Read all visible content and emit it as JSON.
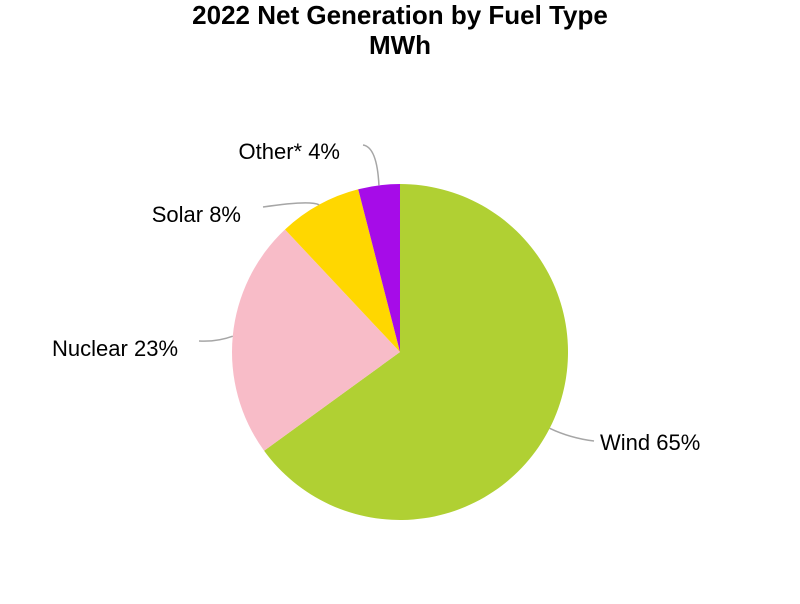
{
  "chart_data": {
    "type": "pie",
    "title": "2022 Net Generation by Fuel Type",
    "subtitle": "MWh",
    "start_angle_deg": 0,
    "direction": "clockwise",
    "slices": [
      {
        "label": "Wind 65%",
        "name": "Wind",
        "value": 65,
        "color": "#B0D033"
      },
      {
        "label": "Nuclear 23%",
        "name": "Nuclear",
        "value": 23,
        "color": "#F8BCC8"
      },
      {
        "label": "Solar 8%",
        "name": "Solar",
        "value": 8,
        "color": "#FFD700"
      },
      {
        "label": "Other* 4%",
        "name": "Other*",
        "value": 4,
        "color": "#A60CE8"
      }
    ],
    "leader_line_color": "#A6A6A6",
    "legend": "none"
  }
}
